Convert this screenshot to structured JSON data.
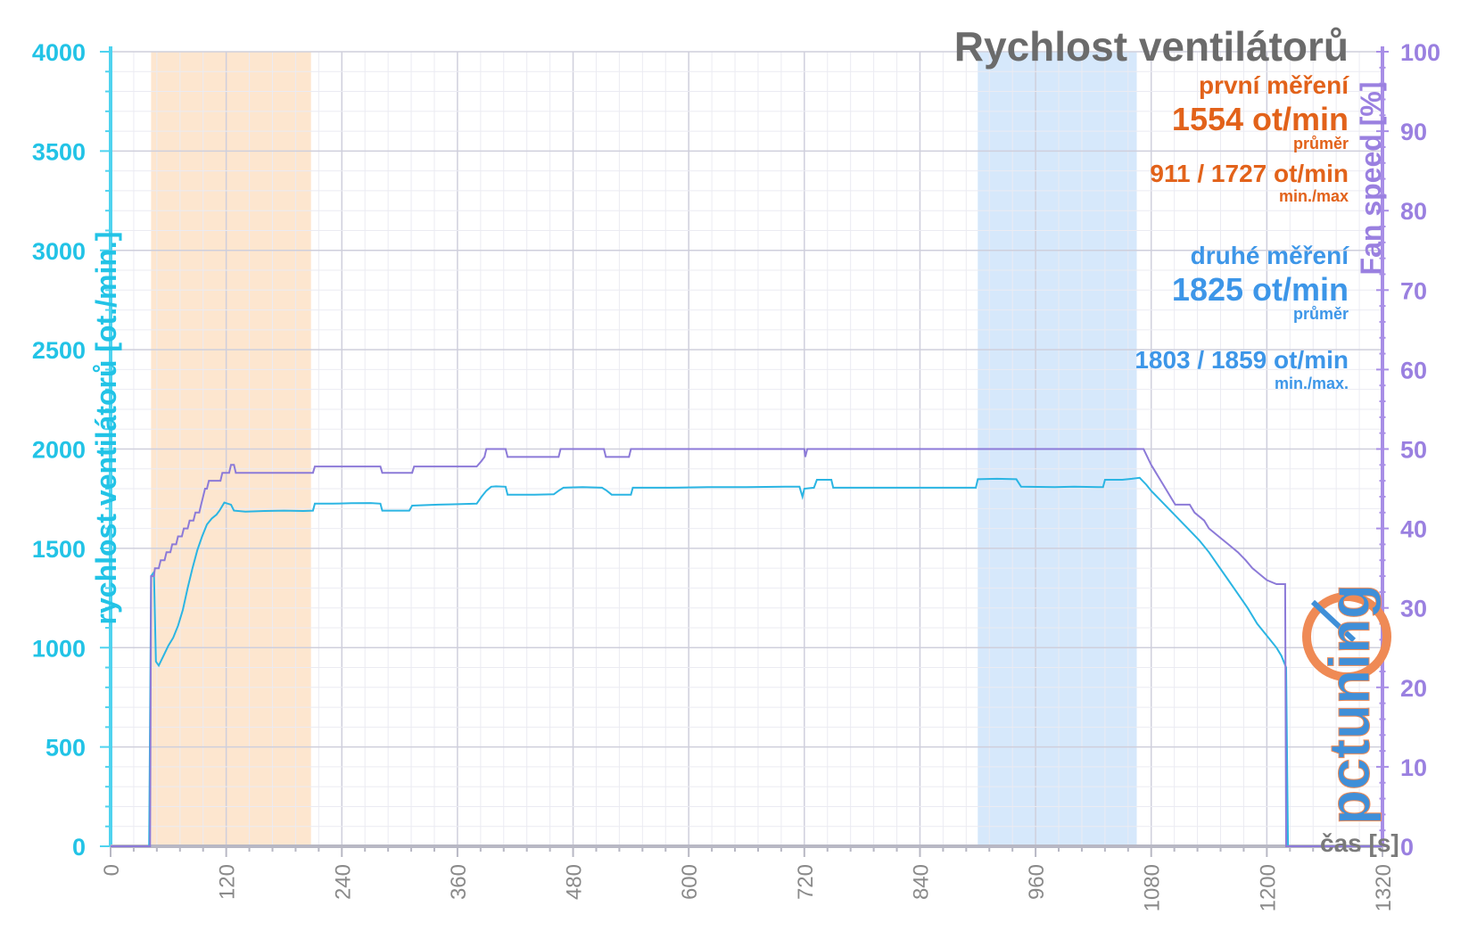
{
  "chart_data": {
    "type": "line",
    "title": "Rychlost ventilátorů",
    "xlabel": "čas [s]",
    "ylabel": "rychlost ventilátorů [ot./min.]",
    "ylabel_right": "Fan speed [%]",
    "xlim": [
      0,
      1320
    ],
    "ylim": [
      0,
      4000
    ],
    "ylim_right": [
      0,
      100
    ],
    "x_ticks": [
      "0",
      "120",
      "240",
      "360",
      "480",
      "600",
      "720",
      "840",
      "960",
      "1080",
      "1200",
      "1320"
    ],
    "y_ticks": [
      "0",
      "500",
      "1000",
      "1500",
      "2000",
      "2500",
      "3000",
      "3500",
      "4000"
    ],
    "y_ticks_right": [
      "0",
      "10",
      "20",
      "30",
      "40",
      "50",
      "60",
      "70",
      "80",
      "90",
      "100"
    ],
    "grid": true,
    "highlight_bands": [
      {
        "x0": 42,
        "x1": 208,
        "color": "#fde6cf"
      },
      {
        "x0": 900,
        "x1": 1065,
        "color": "#d6e8fb"
      }
    ],
    "series": [
      {
        "axis": "left",
        "color": "#2bb5e3",
        "points": [
          [
            0,
            0
          ],
          [
            40,
            0
          ],
          [
            42,
            1360
          ],
          [
            45,
            1380
          ],
          [
            47,
            930
          ],
          [
            50,
            910
          ],
          [
            55,
            960
          ],
          [
            60,
            1010
          ],
          [
            65,
            1050
          ],
          [
            70,
            1110
          ],
          [
            75,
            1190
          ],
          [
            80,
            1300
          ],
          [
            85,
            1400
          ],
          [
            90,
            1490
          ],
          [
            95,
            1560
          ],
          [
            100,
            1620
          ],
          [
            105,
            1650
          ],
          [
            110,
            1670
          ],
          [
            113,
            1690
          ],
          [
            118,
            1730
          ],
          [
            125,
            1720
          ],
          [
            128,
            1690
          ],
          [
            140,
            1685
          ],
          [
            160,
            1688
          ],
          [
            180,
            1690
          ],
          [
            200,
            1688
          ],
          [
            210,
            1690
          ],
          [
            212,
            1725
          ],
          [
            230,
            1725
          ],
          [
            250,
            1727
          ],
          [
            270,
            1728
          ],
          [
            280,
            1725
          ],
          [
            282,
            1690
          ],
          [
            300,
            1690
          ],
          [
            310,
            1690
          ],
          [
            313,
            1715
          ],
          [
            340,
            1720
          ],
          [
            360,
            1722
          ],
          [
            380,
            1725
          ],
          [
            385,
            1760
          ],
          [
            390,
            1790
          ],
          [
            395,
            1810
          ],
          [
            400,
            1812
          ],
          [
            410,
            1810
          ],
          [
            412,
            1770
          ],
          [
            440,
            1770
          ],
          [
            460,
            1772
          ],
          [
            465,
            1790
          ],
          [
            470,
            1805
          ],
          [
            490,
            1808
          ],
          [
            510,
            1805
          ],
          [
            515,
            1790
          ],
          [
            520,
            1770
          ],
          [
            540,
            1770
          ],
          [
            542,
            1805
          ],
          [
            580,
            1805
          ],
          [
            620,
            1808
          ],
          [
            660,
            1808
          ],
          [
            700,
            1810
          ],
          [
            715,
            1810
          ],
          [
            718,
            1760
          ],
          [
            720,
            1800
          ],
          [
            730,
            1805
          ],
          [
            733,
            1845
          ],
          [
            748,
            1845
          ],
          [
            750,
            1805
          ],
          [
            780,
            1805
          ],
          [
            820,
            1805
          ],
          [
            860,
            1805
          ],
          [
            898,
            1805
          ],
          [
            900,
            1848
          ],
          [
            920,
            1850
          ],
          [
            940,
            1848
          ],
          [
            945,
            1810
          ],
          [
            980,
            1808
          ],
          [
            1000,
            1810
          ],
          [
            1025,
            1808
          ],
          [
            1030,
            1808
          ],
          [
            1032,
            1845
          ],
          [
            1050,
            1845
          ],
          [
            1060,
            1850
          ],
          [
            1068,
            1855
          ],
          [
            1075,
            1820
          ],
          [
            1080,
            1790
          ],
          [
            1090,
            1740
          ],
          [
            1100,
            1690
          ],
          [
            1110,
            1640
          ],
          [
            1120,
            1590
          ],
          [
            1130,
            1540
          ],
          [
            1140,
            1480
          ],
          [
            1150,
            1410
          ],
          [
            1160,
            1340
          ],
          [
            1170,
            1270
          ],
          [
            1180,
            1200
          ],
          [
            1190,
            1120
          ],
          [
            1200,
            1060
          ],
          [
            1210,
            1000
          ],
          [
            1215,
            960
          ],
          [
            1220,
            900
          ],
          [
            1222,
            0
          ],
          [
            1320,
            0
          ]
        ]
      },
      {
        "axis": "right",
        "color": "#8c7ad8",
        "points": [
          [
            0,
            0
          ],
          [
            41,
            0
          ],
          [
            42,
            34
          ],
          [
            45,
            34
          ],
          [
            46,
            35
          ],
          [
            50,
            35
          ],
          [
            52,
            36
          ],
          [
            56,
            36
          ],
          [
            58,
            37
          ],
          [
            62,
            37
          ],
          [
            64,
            38
          ],
          [
            68,
            38
          ],
          [
            70,
            39
          ],
          [
            74,
            39
          ],
          [
            76,
            40
          ],
          [
            80,
            40
          ],
          [
            82,
            41
          ],
          [
            86,
            41
          ],
          [
            88,
            42
          ],
          [
            92,
            42
          ],
          [
            94,
            43
          ],
          [
            96,
            44
          ],
          [
            98,
            45
          ],
          [
            100,
            45
          ],
          [
            102,
            46
          ],
          [
            114,
            46
          ],
          [
            116,
            47
          ],
          [
            123,
            47
          ],
          [
            125,
            48
          ],
          [
            128,
            48
          ],
          [
            130,
            47
          ],
          [
            210,
            47
          ],
          [
            212,
            47.8
          ],
          [
            280,
            47.8
          ],
          [
            282,
            47
          ],
          [
            313,
            47
          ],
          [
            315,
            47.8
          ],
          [
            380,
            47.8
          ],
          [
            385,
            48.5
          ],
          [
            388,
            49
          ],
          [
            390,
            50
          ],
          [
            410,
            50
          ],
          [
            412,
            49
          ],
          [
            465,
            49
          ],
          [
            467,
            50
          ],
          [
            512,
            50
          ],
          [
            514,
            49
          ],
          [
            538,
            49
          ],
          [
            540,
            50
          ],
          [
            720,
            50
          ],
          [
            721,
            49
          ],
          [
            723,
            50
          ],
          [
            1070,
            50
          ],
          [
            1072,
            50
          ],
          [
            1080,
            48
          ],
          [
            1085,
            47
          ],
          [
            1090,
            46
          ],
          [
            1095,
            45
          ],
          [
            1100,
            44
          ],
          [
            1105,
            43
          ],
          [
            1110,
            43
          ],
          [
            1120,
            43
          ],
          [
            1125,
            42
          ],
          [
            1135,
            41
          ],
          [
            1140,
            40
          ],
          [
            1150,
            39
          ],
          [
            1160,
            38
          ],
          [
            1170,
            37
          ],
          [
            1178,
            36
          ],
          [
            1185,
            35
          ],
          [
            1190,
            34.5
          ],
          [
            1195,
            34
          ],
          [
            1200,
            33.5
          ],
          [
            1210,
            33
          ],
          [
            1215,
            33
          ],
          [
            1219,
            33
          ],
          [
            1220,
            0
          ],
          [
            1320,
            0
          ]
        ]
      }
    ]
  },
  "legend": {
    "first_label": "první měření",
    "first_avg": "1554 ot/min",
    "first_avg_caption": "průměr",
    "first_minmax": "911 / 1727 ot/min",
    "first_minmax_caption": "min./max",
    "second_label": "druhé měření",
    "second_avg": "1825 ot/min",
    "second_avg_caption": "průměr",
    "second_minmax": "1803 / 1859 ot/min",
    "second_minmax_caption": "min./max."
  },
  "logo": {
    "text": "pctuning"
  },
  "colors": {
    "left_axis": "#22c3e6",
    "right_axis": "#9a80e0",
    "first": "#e2621a",
    "second": "#3d96e8"
  }
}
